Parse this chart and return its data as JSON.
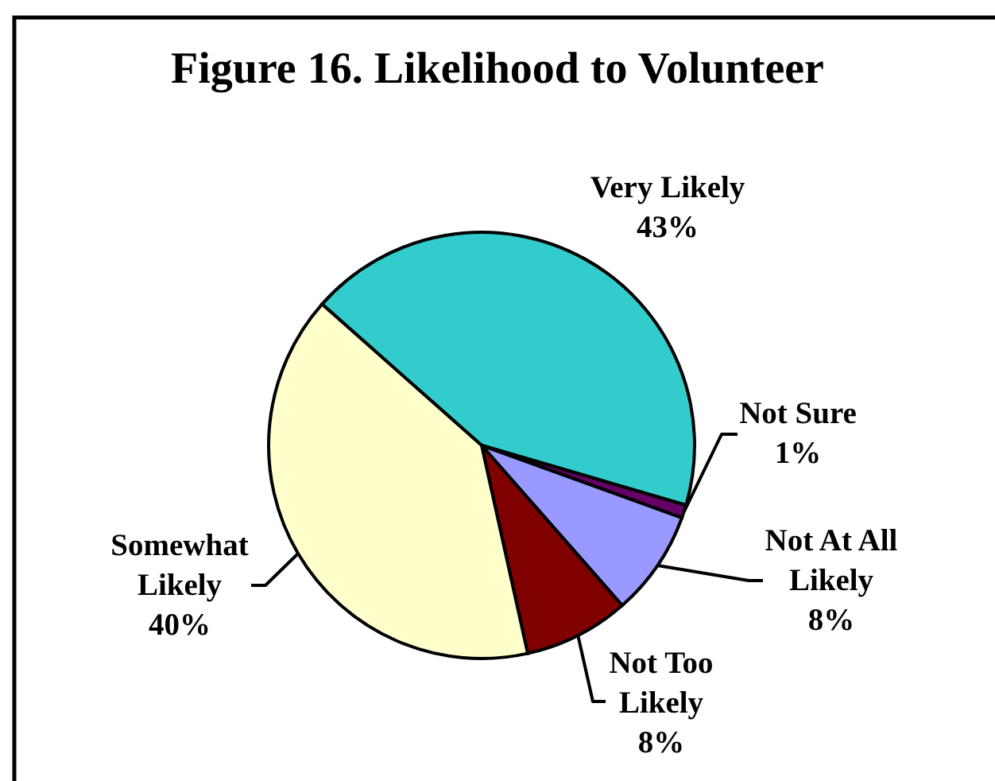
{
  "chart_data": {
    "type": "pie",
    "title": "Figure 16. Likelihood to Volunteer",
    "categories": [
      "Very Likely",
      "Not Sure",
      "Not At All Likely",
      "Not Too Likely",
      "Somewhat Likely"
    ],
    "values": [
      43,
      1,
      8,
      8,
      40
    ],
    "colors": [
      "#33cccc",
      "#660066",
      "#9999ff",
      "#800000",
      "#ffffcc"
    ],
    "value_labels": [
      "43%",
      "1%",
      "8%",
      "8%",
      "40%"
    ],
    "legend": false
  }
}
